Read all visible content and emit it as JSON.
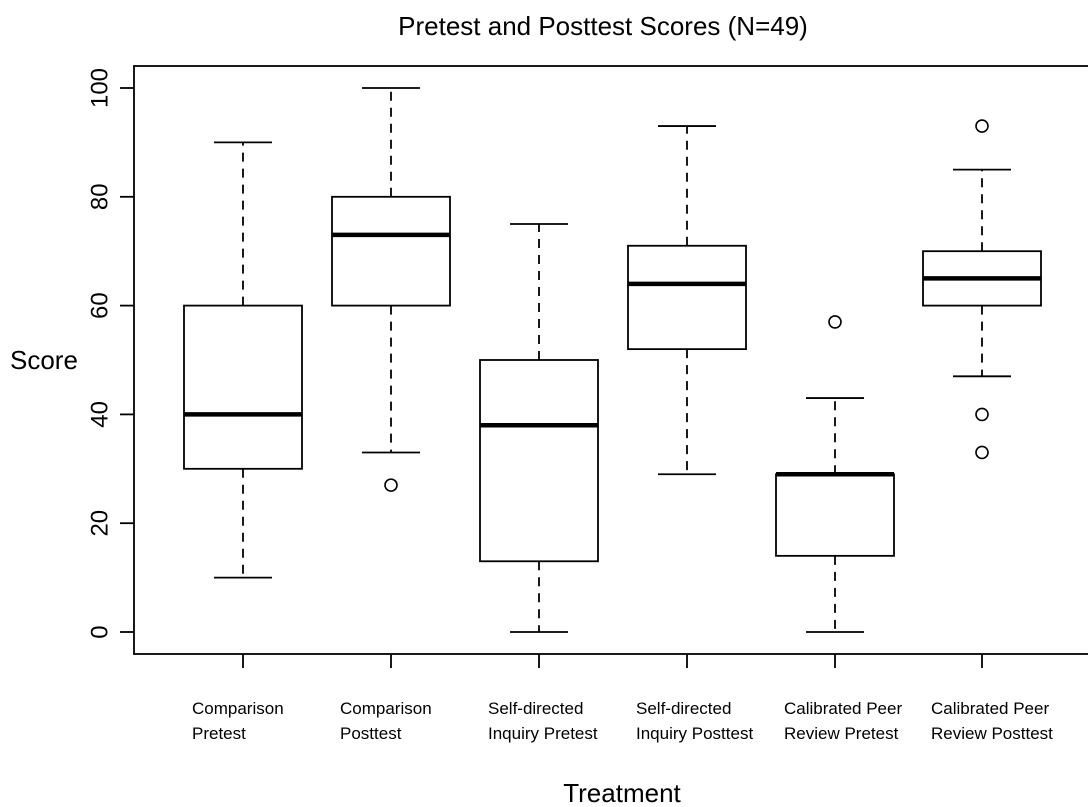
{
  "chart_data": {
    "type": "boxplot",
    "title": "Pretest and Posttest Scores (N=49)",
    "xlabel": "Treatment",
    "ylabel": "Score",
    "ylim": [
      -4,
      102
    ],
    "yticks": [
      0,
      20,
      40,
      60,
      80,
      100
    ],
    "grid": false,
    "categories": [
      [
        "Comparison",
        "Pretest"
      ],
      [
        "Comparison",
        "Posttest"
      ],
      [
        "Self-directed",
        "Inquiry Pretest"
      ],
      [
        "Self-directed",
        "Inquiry Posttest"
      ],
      [
        "Calibrated Peer",
        "Review Pretest"
      ],
      [
        "Calibrated Peer",
        "Review Posttest"
      ]
    ],
    "boxes": [
      {
        "whisker_low": 10,
        "q1": 30,
        "median": 40,
        "q3": 60,
        "whisker_high": 90,
        "outliers": []
      },
      {
        "whisker_low": 33,
        "q1": 60,
        "median": 73,
        "q3": 80,
        "whisker_high": 100,
        "outliers": [
          27
        ]
      },
      {
        "whisker_low": 0,
        "q1": 13,
        "median": 38,
        "q3": 50,
        "whisker_high": 75,
        "outliers": []
      },
      {
        "whisker_low": 29,
        "q1": 52,
        "median": 64,
        "q3": 71,
        "whisker_high": 93,
        "outliers": []
      },
      {
        "whisker_low": 0,
        "q1": 14,
        "median": 29,
        "q3": 29,
        "whisker_high": 43,
        "outliers": [
          57
        ]
      },
      {
        "whisker_low": 47,
        "q1": 60,
        "median": 65,
        "q3": 70,
        "whisker_high": 85,
        "outliers": [
          93,
          40,
          33
        ]
      }
    ]
  }
}
